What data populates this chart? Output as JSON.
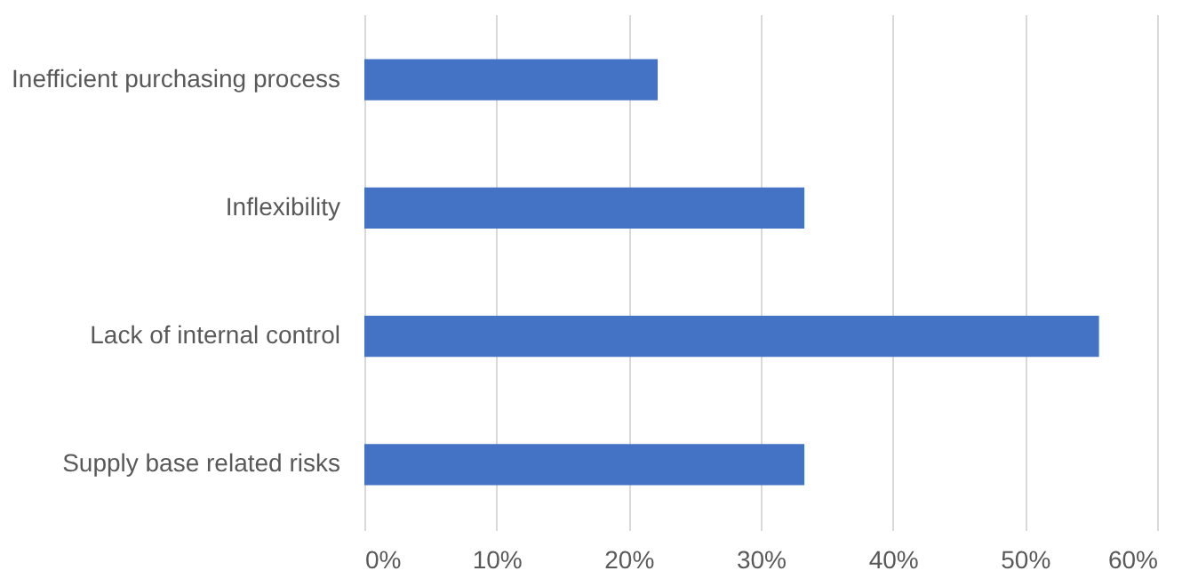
{
  "chart_data": {
    "type": "bar",
    "orientation": "horizontal",
    "categories": [
      "Inefficient purchasing process",
      "Inflexibility",
      "Lack of internal control",
      "Supply base related risks"
    ],
    "values": [
      22.2,
      33.3,
      55.6,
      33.3
    ],
    "color": "#4472c4",
    "xlim": [
      0,
      60
    ],
    "xticks": [
      {
        "value": 0,
        "label": "0%"
      },
      {
        "value": 10,
        "label": "10%"
      },
      {
        "value": 20,
        "label": "20%"
      },
      {
        "value": 30,
        "label": "30%"
      },
      {
        "value": 40,
        "label": "40%"
      },
      {
        "value": 50,
        "label": "50%"
      },
      {
        "value": 60,
        "label": "60%"
      }
    ],
    "grid": "x"
  }
}
